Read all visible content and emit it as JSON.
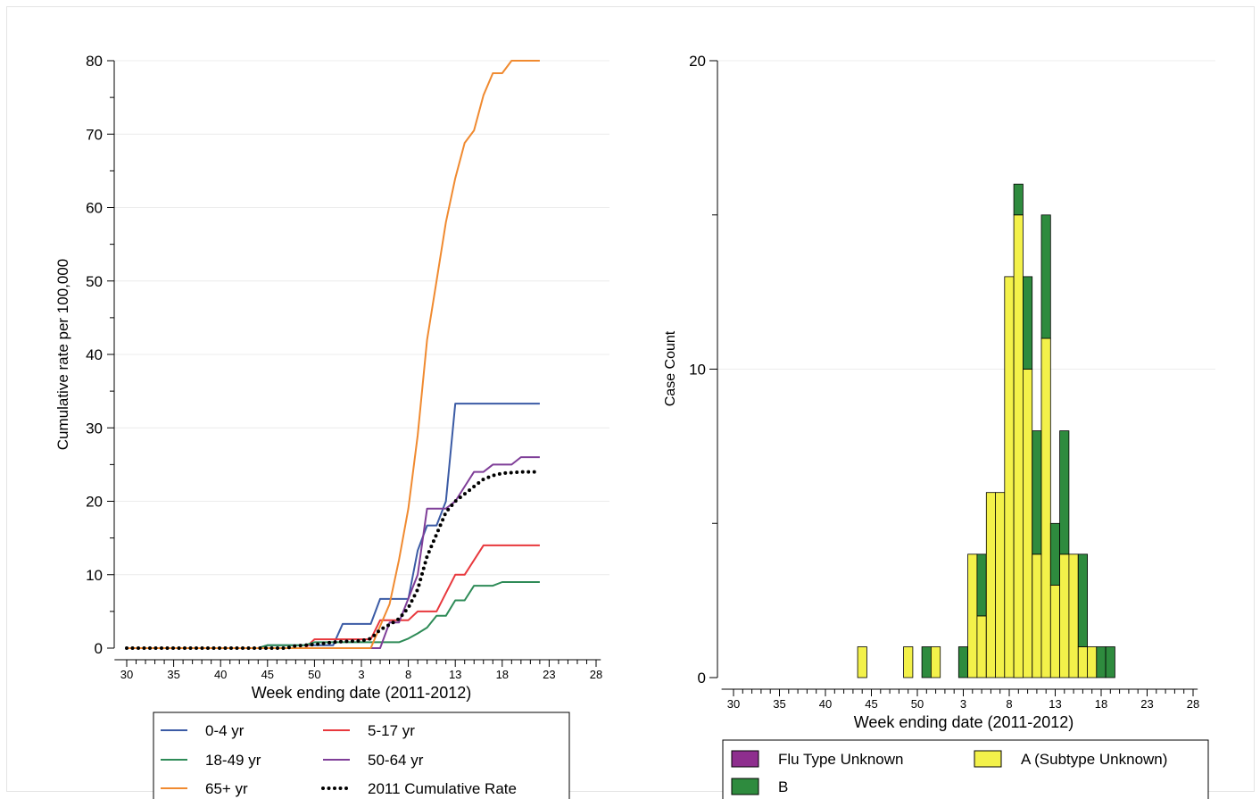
{
  "chart_data": [
    {
      "type": "line",
      "xlabel": "Week ending date (2011-2012)",
      "ylabel": "Cumulative rate per 100,000",
      "ylim": [
        0,
        80
      ],
      "yticks": [
        0,
        10,
        20,
        30,
        40,
        50,
        60,
        70,
        80
      ],
      "x_tick_labels": [
        "30",
        "35",
        "40",
        "45",
        "50",
        "3",
        "8",
        "13",
        "18",
        "23",
        "28"
      ],
      "grid": true,
      "legend": {
        "placement": "bottom",
        "columns": 2
      },
      "series": [
        {
          "name": "0-4 yr",
          "color": "#3b5ba5",
          "style": "solid",
          "points": [
            [
              0,
              0
            ],
            [
              14,
              0
            ],
            [
              15,
              0.4
            ],
            [
              22,
              0.4
            ],
            [
              23,
              3.3
            ],
            [
              26,
              3.3
            ],
            [
              27,
              6.7
            ],
            [
              30,
              6.7
            ],
            [
              31,
              13.3
            ],
            [
              32,
              16.7
            ],
            [
              33,
              16.7
            ],
            [
              34,
              20
            ],
            [
              35,
              33.3
            ],
            [
              44,
              33.3
            ]
          ]
        },
        {
          "name": "5-17 yr",
          "color": "#e8383d",
          "style": "solid",
          "points": [
            [
              0,
              0
            ],
            [
              19,
              0
            ],
            [
              20,
              1.2
            ],
            [
              26,
              1.2
            ],
            [
              27,
              3.8
            ],
            [
              30,
              3.8
            ],
            [
              31,
              5
            ],
            [
              33,
              5
            ],
            [
              34,
              7.5
            ],
            [
              35,
              10
            ],
            [
              36,
              10
            ],
            [
              38,
              14
            ],
            [
              44,
              14
            ]
          ]
        },
        {
          "name": "18-49 yr",
          "color": "#2e8b57",
          "style": "solid",
          "points": [
            [
              0,
              0
            ],
            [
              14,
              0
            ],
            [
              15,
              0.4
            ],
            [
              19,
              0.4
            ],
            [
              20,
              0.8
            ],
            [
              29,
              0.8
            ],
            [
              30,
              1.3
            ],
            [
              31,
              2
            ],
            [
              32,
              2.8
            ],
            [
              33,
              4.4
            ],
            [
              34,
              4.4
            ],
            [
              35,
              6.5
            ],
            [
              36,
              6.5
            ],
            [
              37,
              8.5
            ],
            [
              39,
              8.5
            ],
            [
              40,
              9
            ],
            [
              44,
              9
            ]
          ]
        },
        {
          "name": "50-64 yr",
          "color": "#7f3e98",
          "style": "solid",
          "points": [
            [
              0,
              0
            ],
            [
              27,
              0
            ],
            [
              28,
              3.5
            ],
            [
              29,
              3.5
            ],
            [
              31,
              10
            ],
            [
              32,
              19
            ],
            [
              33,
              19
            ],
            [
              34,
              19
            ],
            [
              35,
              20
            ],
            [
              36,
              22
            ],
            [
              37,
              24
            ],
            [
              38,
              24
            ],
            [
              39,
              25
            ],
            [
              41,
              25
            ],
            [
              42,
              26
            ],
            [
              44,
              26
            ]
          ]
        },
        {
          "name": "65+ yr",
          "color": "#f08a30",
          "style": "solid",
          "points": [
            [
              0,
              0
            ],
            [
              26,
              0
            ],
            [
              27,
              3
            ],
            [
              28,
              6
            ],
            [
              29,
              12
            ],
            [
              30,
              19
            ],
            [
              31,
              29
            ],
            [
              32,
              42
            ],
            [
              33,
              50
            ],
            [
              34,
              58
            ],
            [
              35,
              64
            ],
            [
              36,
              68.8
            ],
            [
              37,
              70.5
            ],
            [
              38,
              75.3
            ],
            [
              39,
              78.3
            ],
            [
              40,
              78.3
            ],
            [
              41,
              80
            ],
            [
              44,
              80
            ]
          ]
        },
        {
          "name": "2011 Cumulative Rate",
          "color": "#000000",
          "style": "dotted",
          "points": [
            [
              0,
              0
            ],
            [
              17,
              0
            ],
            [
              18,
              0.3
            ],
            [
              20,
              0.5
            ],
            [
              22,
              0.8
            ],
            [
              23,
              0.9
            ],
            [
              25,
              1
            ],
            [
              26,
              1.3
            ],
            [
              27,
              2.5
            ],
            [
              28,
              3.2
            ],
            [
              29,
              4
            ],
            [
              30,
              5.5
            ],
            [
              31,
              8
            ],
            [
              32,
              12.5
            ],
            [
              33,
              15.5
            ],
            [
              34,
              18.5
            ],
            [
              35,
              20
            ],
            [
              36,
              21
            ],
            [
              37,
              22
            ],
            [
              38,
              23
            ],
            [
              39,
              23.5
            ],
            [
              40,
              23.8
            ],
            [
              42,
              24
            ],
            [
              44,
              24
            ]
          ]
        }
      ]
    },
    {
      "type": "bar",
      "stacked": true,
      "xlabel": "Week ending date (2011-2012)",
      "ylabel": "Case Count",
      "ylim": [
        0,
        20
      ],
      "yticks": [
        0,
        10,
        20
      ],
      "x_tick_labels": [
        "30",
        "35",
        "40",
        "45",
        "50",
        "3",
        "8",
        "13",
        "18",
        "23",
        "28"
      ],
      "grid": true,
      "legend": {
        "placement": "bottom",
        "columns": 2
      },
      "categories_week_index": [
        14,
        19,
        21,
        22,
        25,
        26,
        27,
        28,
        29,
        30,
        31,
        32,
        33,
        34,
        35,
        36,
        37,
        38,
        39,
        40,
        41,
        42
      ],
      "series": [
        {
          "name": "Flu Type Unknown",
          "color": "#8e2e8e",
          "values": [
            0,
            0,
            0,
            0,
            0,
            0,
            0,
            0,
            0,
            0,
            0,
            0,
            0,
            0,
            0,
            0,
            0,
            0,
            0,
            0,
            0,
            0
          ]
        },
        {
          "name": "A (Subtype Unknown)",
          "color": "#f3f14a",
          "values": [
            1,
            1,
            0,
            1,
            0,
            4,
            2,
            6,
            6,
            13,
            15,
            10,
            4,
            11,
            3,
            4,
            4,
            1,
            1,
            0,
            0,
            0
          ]
        },
        {
          "name": "B",
          "color": "#2e8b3e",
          "values": [
            0,
            0,
            1,
            0,
            1,
            0,
            2,
            0,
            0,
            0,
            1,
            3,
            4,
            4,
            2,
            4,
            0,
            3,
            0,
            1,
            1,
            0
          ]
        }
      ]
    }
  ]
}
